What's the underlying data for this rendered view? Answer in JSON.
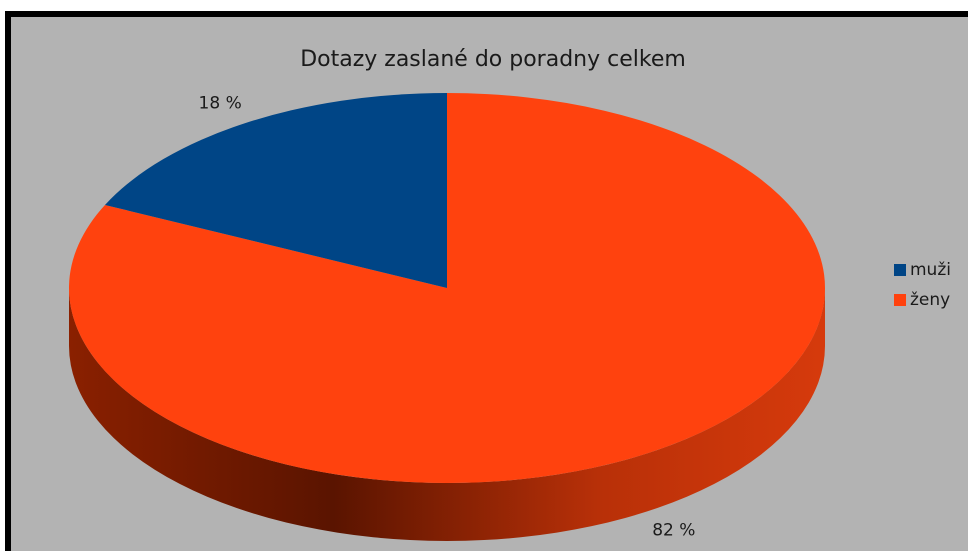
{
  "chart_data": {
    "type": "pie",
    "title": "Dotazy zaslané do poradny celkem",
    "categories": [
      "muži",
      "ženy"
    ],
    "values": [
      18,
      82
    ],
    "value_labels": [
      "18 %",
      "82 %"
    ],
    "colors": [
      "#004586",
      "#ff420e"
    ],
    "legend": "right"
  }
}
